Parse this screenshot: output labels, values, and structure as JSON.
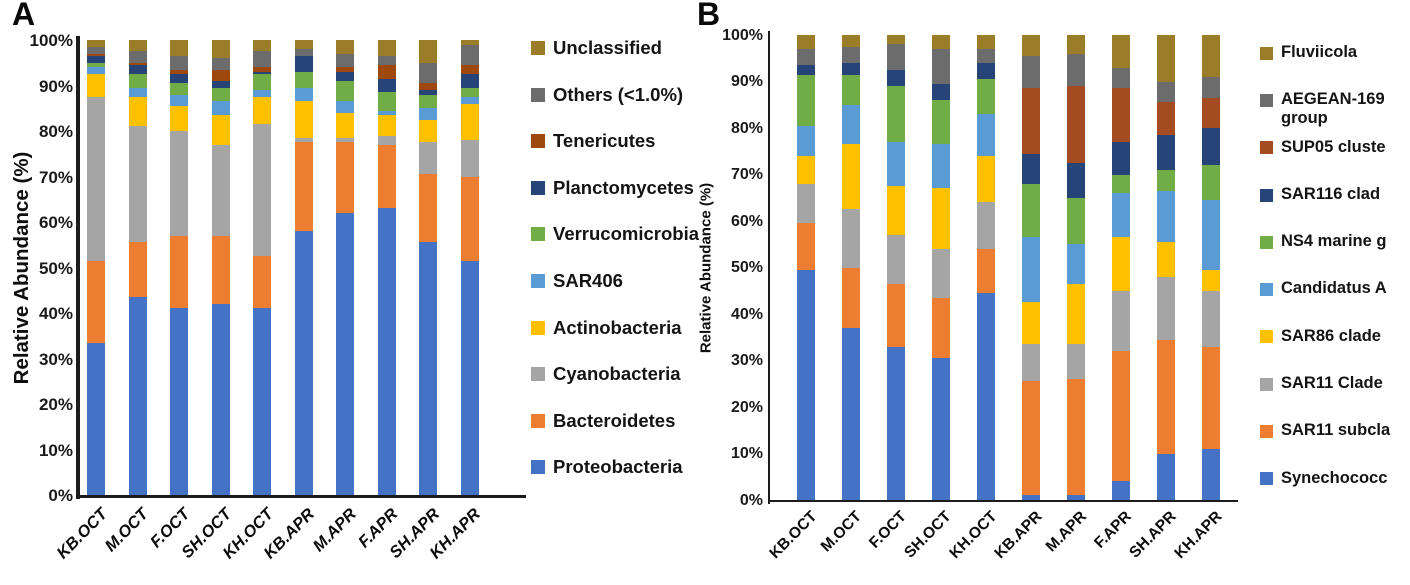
{
  "panels": [
    {
      "label": "A"
    },
    {
      "label": "B"
    }
  ],
  "chart_data": [
    {
      "type": "bar",
      "stacked": true,
      "title": "",
      "xlabel": "",
      "ylabel": "Relative Abundance (%)",
      "ylim": [
        0,
        100
      ],
      "grid": false,
      "legend_position": "right",
      "yticks": [
        "0%",
        "10%",
        "20%",
        "30%",
        "40%",
        "50%",
        "60%",
        "70%",
        "80%",
        "90%",
        "100%"
      ],
      "categories": [
        "KB.OCT",
        "M.OCT",
        "F.OCT",
        "SH.OCT",
        "KH.OCT",
        "KB.APR",
        "M.APR",
        "F.APR",
        "SH.APR",
        "KH.APR"
      ],
      "series": [
        {
          "name": "Proteobacteria",
          "color": "#4472C4",
          "values": [
            33.5,
            43.5,
            41,
            42,
            41,
            58,
            62,
            63,
            55.5,
            51.5
          ]
        },
        {
          "name": "Bacteroidetes",
          "color": "#ED7D31",
          "values": [
            18,
            12,
            16,
            15,
            11.5,
            19.5,
            15.5,
            14,
            15,
            18.5
          ]
        },
        {
          "name": "Cyanobacteria",
          "color": "#A5A5A5",
          "values": [
            36,
            25.5,
            23,
            20,
            29,
            1,
            1,
            2,
            7,
            8
          ]
        },
        {
          "name": "Actinobacteria",
          "color": "#FFC000",
          "values": [
            5,
            6.5,
            5.5,
            6.5,
            6,
            8,
            5.5,
            4.5,
            5,
            8
          ]
        },
        {
          "name": "SAR406",
          "color": "#5B9BD5",
          "values": [
            1.5,
            2,
            2.5,
            3,
            1.5,
            3,
            2.5,
            1,
            2.5,
            1.5
          ]
        },
        {
          "name": "Verrucomicrobia",
          "color": "#70AD47",
          "values": [
            1,
            3,
            2.5,
            3,
            3.5,
            3.5,
            4.5,
            4,
            3,
            2
          ]
        },
        {
          "name": "Planctomycetes",
          "color": "#264478",
          "values": [
            1.5,
            2,
            2,
            1.5,
            0.5,
            3.5,
            2,
            3,
            1,
            3
          ]
        },
        {
          "name": "Tenericutes",
          "color": "#9E480E",
          "values": [
            0.5,
            0.5,
            1,
            2.5,
            1,
            0,
            1,
            3,
            1.5,
            2
          ]
        },
        {
          "name": "Others (<1.0%)",
          "color": "#6C6C6C",
          "values": [
            1.5,
            2.5,
            3,
            2.5,
            3.5,
            1.5,
            3,
            2,
            4.5,
            4.5
          ]
        },
        {
          "name": "Unclassified",
          "color": "#9B7C28",
          "values": [
            1.5,
            2.5,
            3.5,
            4,
            2.5,
            2,
            3,
            3.5,
            5,
            1
          ]
        }
      ]
    },
    {
      "type": "bar",
      "stacked": true,
      "title": "",
      "xlabel": "",
      "ylabel": "Relative Abundance (%)",
      "ylim": [
        0,
        100
      ],
      "grid": false,
      "legend_position": "right",
      "yticks": [
        "0%",
        "10%",
        "20%",
        "30%",
        "40%",
        "50%",
        "60%",
        "70%",
        "80%",
        "90%",
        "100%"
      ],
      "categories": [
        "KB.OCT",
        "M.OCT",
        "F.OCT",
        "SH.OCT",
        "KH.OCT",
        "KB.APR",
        "M.APR",
        "F.APR",
        "SH.APR",
        "KH.APR"
      ],
      "series": [
        {
          "name": "Synechococc",
          "color": "#4472C4",
          "values": [
            49.5,
            37,
            33,
            30.5,
            44.5,
            1,
            1,
            4,
            10,
            11
          ]
        },
        {
          "name": "SAR11 subcla",
          "color": "#ED7D31",
          "values": [
            10,
            13,
            13.5,
            13,
            9.5,
            24.5,
            25,
            28,
            24.5,
            22
          ]
        },
        {
          "name": "SAR11 Clade",
          "color": "#A5A5A5",
          "values": [
            8.5,
            12.5,
            10.5,
            10.5,
            10,
            8,
            7.5,
            13,
            13.5,
            12
          ]
        },
        {
          "name": "SAR86 clade",
          "color": "#FFC000",
          "values": [
            6,
            14,
            10.5,
            13,
            10,
            9,
            13,
            11.5,
            7.5,
            4.5
          ]
        },
        {
          "name": "Candidatus A",
          "color": "#5B9BD5",
          "values": [
            6.5,
            8.5,
            9.5,
            9.5,
            9,
            14,
            8.5,
            9.5,
            11,
            15
          ]
        },
        {
          "name": "NS4 marine g",
          "color": "#70AD47",
          "values": [
            11,
            6.5,
            12,
            9.5,
            7.5,
            11.5,
            10,
            4,
            4.5,
            7.5
          ]
        },
        {
          "name": "SAR116 clad",
          "color": "#264478",
          "values": [
            2,
            2.5,
            3.5,
            3.5,
            3.5,
            6.5,
            7.5,
            7,
            7.5,
            8
          ]
        },
        {
          "name": "SUP05 cluste",
          "color": "#A54B22",
          "values": [
            0,
            0,
            0,
            0,
            0,
            14,
            16.5,
            11.5,
            7,
            6.5
          ]
        },
        {
          "name": "AEGEAN-169\ngroup",
          "color": "#6C6C6C",
          "values": [
            3.5,
            3.5,
            5.5,
            7.5,
            3,
            7,
            7,
            4.5,
            4.5,
            4.5
          ]
        },
        {
          "name": "Fluviicola",
          "color": "#9B7C28",
          "values": [
            3,
            2.5,
            2,
            3,
            3,
            4.5,
            4,
            7,
            10,
            9
          ]
        }
      ]
    }
  ]
}
